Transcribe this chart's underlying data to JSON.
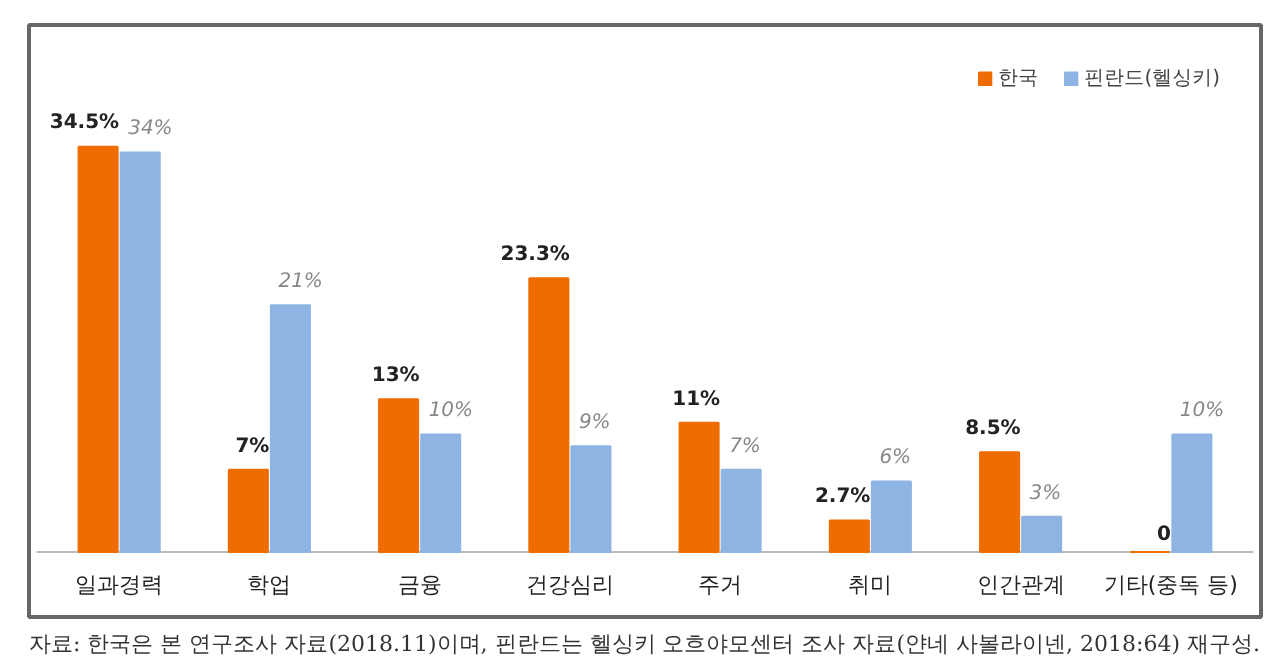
{
  "chart_data": {
    "type": "bar",
    "categories": [
      "일과경력",
      "학업",
      "금융",
      "건강심리",
      "주거",
      "취미",
      "인간관계",
      "기타(중독 등)"
    ],
    "series": [
      {
        "name": "한국",
        "color": "#ef6c00",
        "values": [
          34.5,
          7,
          13,
          23.3,
          11,
          2.7,
          8.5,
          0
        ],
        "value_labels": [
          "34.5%",
          "7%",
          "13%",
          "23.3%",
          "11%",
          "2.7%",
          "8.5%",
          "0"
        ]
      },
      {
        "name": "핀란드(헬싱키)",
        "color": "#8db4e2",
        "values": [
          34,
          21,
          10,
          9,
          7,
          6,
          3,
          10
        ],
        "value_labels": [
          "34%",
          "21%",
          "10%",
          "9%",
          "7%",
          "6%",
          "3%",
          "10%"
        ]
      }
    ],
    "annotations": [
      "자료: 한국은 본 연구조사 자료(2018.11)이며, 핀란드는 헬싱키 오흐야모센터 조사 자료(얀네 사볼라이넨, 2018:64) 재구성."
    ],
    "tick_labels": "x",
    "legend": "top right"
  }
}
